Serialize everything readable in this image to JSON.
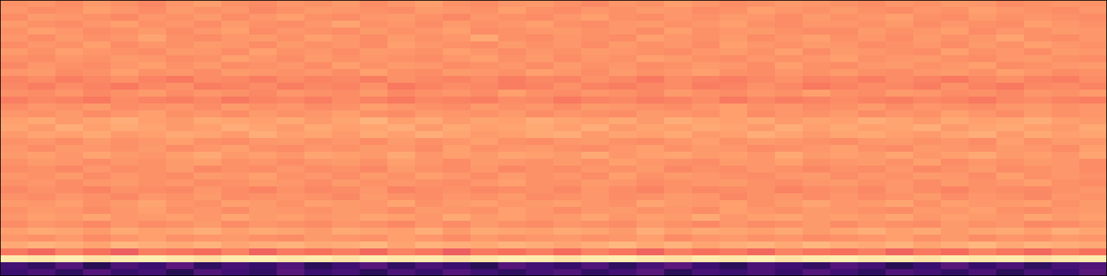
{
  "chart_data": {
    "type": "heatmap",
    "color": "magma",
    "tick_labels": false,
    "zlim": [
      0,
      100
    ],
    "z": [
      [
        77,
        78,
        76,
        79,
        77,
        75,
        78,
        80,
        77,
        76,
        78,
        77,
        79,
        76,
        78,
        80,
        77,
        76,
        78,
        79,
        77,
        75,
        78,
        77,
        80,
        78,
        76,
        77,
        79,
        78,
        77,
        76,
        78,
        77,
        79,
        78,
        76,
        77,
        78,
        77
      ],
      [
        78,
        76,
        77,
        80,
        78,
        76,
        79,
        77,
        78,
        75,
        77,
        79,
        78,
        77,
        76,
        79,
        78,
        77,
        80,
        77,
        76,
        78,
        77,
        79,
        78,
        76,
        77,
        80,
        78,
        77,
        79,
        77,
        76,
        78,
        77,
        80,
        78,
        77,
        76,
        78
      ],
      [
        76,
        79,
        78,
        77,
        75,
        78,
        77,
        79,
        76,
        78,
        80,
        77,
        76,
        78,
        79,
        77,
        75,
        78,
        77,
        76,
        78,
        80,
        77,
        76,
        78,
        77,
        79,
        78,
        76,
        79,
        77,
        78,
        80,
        77,
        76,
        79,
        77,
        78,
        77,
        76
      ],
      [
        79,
        77,
        76,
        78,
        80,
        77,
        78,
        76,
        79,
        77,
        76,
        78,
        81,
        77,
        78,
        76,
        79,
        77,
        78,
        80,
        77,
        76,
        78,
        79,
        77,
        78,
        80,
        77,
        76,
        78,
        78,
        77,
        79,
        76,
        78,
        77,
        76,
        80,
        78,
        77
      ],
      [
        77,
        80,
        78,
        76,
        77,
        79,
        76,
        78,
        80,
        76,
        78,
        77,
        76,
        79,
        77,
        78,
        80,
        76,
        77,
        78,
        79,
        77,
        78,
        76,
        80,
        77,
        78,
        79,
        77,
        76,
        76,
        79,
        77,
        78,
        80,
        76,
        78,
        77,
        79,
        78
      ],
      [
        78,
        76,
        79,
        77,
        78,
        81,
        77,
        76,
        78,
        79,
        77,
        80,
        78,
        76,
        79,
        77,
        78,
        82,
        77,
        76,
        78,
        77,
        76,
        80,
        78,
        77,
        79,
        76,
        78,
        80,
        77,
        78,
        76,
        79,
        77,
        78,
        81,
        77,
        76,
        78
      ],
      [
        76,
        78,
        77,
        80,
        76,
        78,
        77,
        79,
        78,
        76,
        79,
        77,
        78,
        76,
        80,
        78,
        77,
        76,
        79,
        77,
        78,
        76,
        79,
        77,
        78,
        76,
        80,
        78,
        77,
        79,
        78,
        76,
        77,
        78,
        76,
        79,
        77,
        80,
        78,
        77
      ],
      [
        79,
        77,
        80,
        78,
        77,
        76,
        79,
        78,
        76,
        80,
        77,
        78,
        76,
        79,
        78,
        77,
        80,
        78,
        76,
        78,
        77,
        79,
        78,
        77,
        76,
        78,
        79,
        77,
        80,
        76,
        79,
        78,
        77,
        76,
        80,
        77,
        78,
        76,
        79,
        78
      ],
      [
        77,
        76,
        78,
        77,
        79,
        78,
        76,
        77,
        80,
        78,
        76,
        79,
        77,
        78,
        77,
        76,
        78,
        80,
        77,
        79,
        76,
        78,
        77,
        80,
        79,
        77,
        76,
        78,
        77,
        78,
        80,
        77,
        78,
        79,
        77,
        76,
        78,
        79,
        77,
        76
      ],
      [
        75,
        78,
        77,
        76,
        78,
        80,
        77,
        79,
        76,
        77,
        78,
        76,
        80,
        77,
        79,
        78,
        76,
        77,
        78,
        76,
        79,
        77,
        78,
        76,
        77,
        79,
        78,
        76,
        80,
        77,
        76,
        78,
        79,
        77,
        78,
        80,
        76,
        77,
        78,
        79
      ],
      [
        78,
        79,
        76,
        77,
        80,
        77,
        78,
        76,
        79,
        78,
        77,
        78,
        76,
        80,
        77,
        76,
        79,
        78,
        77,
        80,
        78,
        76,
        79,
        77,
        78,
        80,
        77,
        76,
        78,
        77,
        79,
        77,
        76,
        78,
        79,
        77,
        80,
        78,
        76,
        77
      ],
      [
        74,
        76,
        73,
        75,
        77,
        74,
        72,
        76,
        75,
        73,
        76,
        74,
        75,
        73,
        77,
        75,
        74,
        76,
        73,
        75,
        74,
        77,
        75,
        72,
        76,
        74,
        73,
        75,
        77,
        74,
        75,
        73,
        76,
        74,
        72,
        75,
        77,
        74,
        73,
        76
      ],
      [
        75,
        73,
        76,
        74,
        72,
        75,
        77,
        73,
        74,
        76,
        73,
        75,
        74,
        77,
        72,
        74,
        76,
        75,
        73,
        74,
        77,
        74,
        73,
        75,
        76,
        73,
        74,
        77,
        75,
        72,
        74,
        76,
        75,
        73,
        77,
        74,
        72,
        75,
        76,
        74
      ],
      [
        77,
        76,
        78,
        75,
        77,
        79,
        76,
        78,
        77,
        75,
        78,
        77,
        76,
        79,
        75,
        77,
        78,
        76,
        80,
        77,
        76,
        78,
        77,
        75,
        79,
        77,
        76,
        78,
        77,
        80,
        77,
        76,
        79,
        78,
        76,
        77,
        75,
        78,
        77,
        79
      ],
      [
        73,
        75,
        74,
        72,
        76,
        74,
        73,
        75,
        72,
        74,
        75,
        73,
        76,
        74,
        72,
        75,
        74,
        73,
        76,
        75,
        72,
        74,
        75,
        73,
        74,
        76,
        72,
        75,
        73,
        74,
        76,
        74,
        73,
        75,
        74,
        72,
        75,
        76,
        74,
        73
      ],
      [
        76,
        78,
        77,
        79,
        76,
        77,
        78,
        76,
        79,
        77,
        78,
        76,
        77,
        80,
        78,
        77,
        76,
        79,
        77,
        78,
        76,
        79,
        78,
        77,
        76,
        78,
        80,
        77,
        78,
        76,
        77,
        79,
        76,
        78,
        77,
        76,
        78,
        79,
        77,
        78
      ],
      [
        78,
        77,
        79,
        76,
        78,
        80,
        77,
        78,
        76,
        79,
        77,
        78,
        80,
        77,
        76,
        79,
        78,
        77,
        79,
        76,
        78,
        77,
        76,
        79,
        78,
        77,
        80,
        76,
        78,
        77,
        79,
        76,
        78,
        77,
        80,
        78,
        76,
        79,
        77,
        78
      ],
      [
        80,
        82,
        79,
        81,
        83,
        80,
        79,
        82,
        81,
        80,
        82,
        79,
        81,
        84,
        80,
        82,
        79,
        81,
        80,
        83,
        81,
        80,
        82,
        79,
        83,
        81,
        80,
        82,
        79,
        81,
        80,
        83,
        81,
        79,
        82,
        80,
        81,
        83,
        80,
        79
      ],
      [
        81,
        79,
        83,
        80,
        82,
        81,
        79,
        80,
        83,
        81,
        79,
        82,
        80,
        81,
        83,
        79,
        82,
        80,
        81,
        82,
        80,
        83,
        79,
        81,
        80,
        82,
        81,
        79,
        83,
        80,
        82,
        80,
        81,
        83,
        79,
        81,
        82,
        80,
        79,
        82
      ],
      [
        79,
        81,
        80,
        82,
        79,
        80,
        82,
        81,
        79,
        83,
        80,
        81,
        79,
        82,
        80,
        83,
        81,
        79,
        80,
        82,
        83,
        79,
        81,
        80,
        82,
        79,
        80,
        83,
        81,
        79,
        81,
        82,
        80,
        79,
        81,
        83,
        79,
        82,
        80,
        81
      ],
      [
        77,
        78,
        76,
        79,
        77,
        78,
        80,
        77,
        76,
        78,
        79,
        77,
        78,
        76,
        79,
        77,
        78,
        80,
        77,
        76,
        78,
        79,
        77,
        76,
        78,
        80,
        77,
        79,
        78,
        77,
        76,
        78,
        79,
        77,
        78,
        76,
        80,
        77,
        79,
        78
      ],
      [
        78,
        76,
        79,
        78,
        77,
        79,
        76,
        78,
        80,
        77,
        76,
        78,
        77,
        79,
        78,
        76,
        80,
        77,
        78,
        79,
        77,
        76,
        78,
        80,
        77,
        79,
        78,
        76,
        77,
        78,
        80,
        77,
        76,
        79,
        78,
        77,
        79,
        78,
        76,
        80
      ],
      [
        79,
        80,
        78,
        81,
        79,
        78,
        80,
        82,
        79,
        80,
        78,
        81,
        80,
        79,
        82,
        78,
        80,
        79,
        81,
        80,
        79,
        82,
        78,
        80,
        81,
        79,
        80,
        78,
        82,
        79,
        80,
        79,
        81,
        78,
        80,
        82,
        79,
        80,
        78,
        81
      ],
      [
        77,
        79,
        78,
        76,
        78,
        77,
        79,
        80,
        77,
        78,
        76,
        78,
        79,
        77,
        80,
        78,
        76,
        79,
        78,
        77,
        79,
        77,
        80,
        78,
        77,
        76,
        79,
        78,
        80,
        77,
        78,
        79,
        77,
        80,
        76,
        78,
        77,
        79,
        78,
        76
      ],
      [
        76,
        77,
        75,
        78,
        76,
        77,
        79,
        75,
        77,
        76,
        78,
        76,
        77,
        75,
        79,
        77,
        76,
        78,
        75,
        77,
        76,
        78,
        77,
        79,
        75,
        77,
        76,
        78,
        77,
        75,
        77,
        76,
        78,
        75,
        77,
        79,
        76,
        77,
        78,
        76
      ],
      [
        78,
        77,
        79,
        76,
        78,
        77,
        76,
        79,
        78,
        80,
        77,
        78,
        76,
        79,
        77,
        80,
        78,
        76,
        79,
        77,
        78,
        76,
        80,
        77,
        79,
        78,
        77,
        76,
        78,
        79,
        76,
        78,
        77,
        79,
        78,
        76,
        80,
        77,
        78,
        77
      ],
      [
        77,
        78,
        76,
        78,
        79,
        77,
        78,
        76,
        77,
        79,
        78,
        76,
        79,
        77,
        78,
        77,
        76,
        78,
        80,
        77,
        77,
        79,
        78,
        76,
        77,
        78,
        79,
        77,
        76,
        78,
        79,
        77,
        78,
        76,
        79,
        77,
        78,
        80,
        77,
        76
      ],
      [
        75,
        77,
        76,
        74,
        77,
        76,
        75,
        78,
        76,
        74,
        77,
        75,
        76,
        78,
        74,
        76,
        77,
        75,
        76,
        77,
        75,
        78,
        76,
        74,
        77,
        75,
        76,
        77,
        74,
        76,
        77,
        75,
        78,
        76,
        74,
        77,
        76,
        75,
        77,
        78
      ],
      [
        77,
        76,
        78,
        77,
        75,
        78,
        77,
        79,
        76,
        77,
        78,
        77,
        75,
        79,
        77,
        76,
        78,
        77,
        79,
        76,
        77,
        78,
        76,
        77,
        79,
        78,
        75,
        77,
        78,
        76,
        78,
        76,
        77,
        79,
        76,
        78,
        77,
        75,
        78,
        77
      ],
      [
        79,
        78,
        80,
        77,
        79,
        81,
        78,
        77,
        80,
        79,
        77,
        80,
        79,
        78,
        81,
        77,
        79,
        80,
        78,
        79,
        80,
        78,
        77,
        81,
        79,
        78,
        80,
        77,
        79,
        81,
        78,
        79,
        81,
        77,
        80,
        78,
        79,
        80,
        77,
        79
      ],
      [
        77,
        79,
        78,
        76,
        78,
        80,
        77,
        78,
        76,
        79,
        78,
        77,
        79,
        78,
        76,
        79,
        78,
        77,
        80,
        78,
        76,
        78,
        79,
        77,
        78,
        76,
        80,
        78,
        77,
        79,
        78,
        77,
        76,
        79,
        78,
        80,
        77,
        76,
        78,
        79
      ],
      [
        78,
        80,
        79,
        81,
        78,
        79,
        80,
        78,
        81,
        79,
        80,
        78,
        79,
        81,
        80,
        78,
        82,
        79,
        80,
        78,
        79,
        81,
        78,
        80,
        79,
        82,
        78,
        80,
        81,
        79,
        80,
        79,
        81,
        78,
        80,
        79,
        78,
        81,
        79,
        80
      ],
      [
        76,
        78,
        77,
        75,
        78,
        76,
        77,
        79,
        76,
        78,
        77,
        76,
        78,
        77,
        75,
        78,
        76,
        79,
        77,
        76,
        78,
        77,
        76,
        79,
        77,
        75,
        78,
        76,
        77,
        79,
        76,
        78,
        77,
        76,
        79,
        77,
        78,
        75,
        76,
        78
      ],
      [
        80,
        82,
        81,
        79,
        82,
        80,
        81,
        83,
        80,
        82,
        81,
        79,
        82,
        81,
        80,
        83,
        79,
        82,
        81,
        80,
        82,
        81,
        79,
        83,
        80,
        82,
        81,
        80,
        82,
        79,
        81,
        83,
        80,
        82,
        79,
        81,
        82,
        80,
        83,
        81
      ],
      [
        78,
        77,
        79,
        76,
        78,
        80,
        77,
        78,
        79,
        77,
        76,
        79,
        78,
        77,
        80,
        78,
        76,
        79,
        77,
        78,
        79,
        77,
        78,
        80,
        76,
        78,
        79,
        77,
        78,
        76,
        77,
        78,
        80,
        77,
        79,
        76,
        78,
        77,
        79,
        78
      ],
      [
        82,
        84,
        83,
        81,
        85,
        83,
        82,
        84,
        81,
        83,
        84,
        82,
        83,
        85,
        81,
        84,
        83,
        82,
        84,
        83,
        81,
        83,
        85,
        82,
        84,
        81,
        83,
        84,
        82,
        85,
        83,
        82,
        84,
        81,
        83,
        85,
        82,
        84,
        83,
        82
      ],
      [
        72,
        68,
        74,
        70,
        66,
        73,
        71,
        69,
        74,
        67,
        72,
        70,
        73,
        68,
        74,
        71,
        66,
        72,
        70,
        73,
        69,
        74,
        71,
        67,
        73,
        70,
        72,
        68,
        74,
        71,
        70,
        73,
        67,
        72,
        69,
        74,
        71,
        68,
        73,
        70
      ],
      [
        96,
        95,
        97,
        94,
        96,
        97,
        95,
        93,
        96,
        97,
        95,
        96,
        94,
        97,
        95,
        96,
        93,
        95,
        97,
        96,
        94,
        96,
        97,
        95,
        93,
        96,
        95,
        97,
        94,
        96,
        97,
        95,
        96,
        94,
        97,
        95,
        96,
        93,
        95,
        96
      ],
      [
        22,
        18,
        26,
        15,
        24,
        20,
        28,
        17,
        23,
        19,
        25,
        16,
        21,
        27,
        18,
        24,
        20,
        15,
        26,
        22,
        19,
        25,
        17,
        23,
        28,
        20,
        16,
        24,
        21,
        18,
        26,
        22,
        15,
        20,
        27,
        19,
        24,
        17,
        23,
        25
      ],
      [
        20,
        24,
        17,
        26,
        19,
        22,
        15,
        25,
        21,
        18,
        27,
        20,
        23,
        16,
        24,
        19,
        26,
        21,
        17,
        22,
        25,
        18,
        22,
        27,
        16,
        23,
        20,
        24,
        19,
        26,
        21,
        17,
        25,
        22,
        18,
        24,
        16,
        23,
        20,
        27
      ]
    ]
  }
}
